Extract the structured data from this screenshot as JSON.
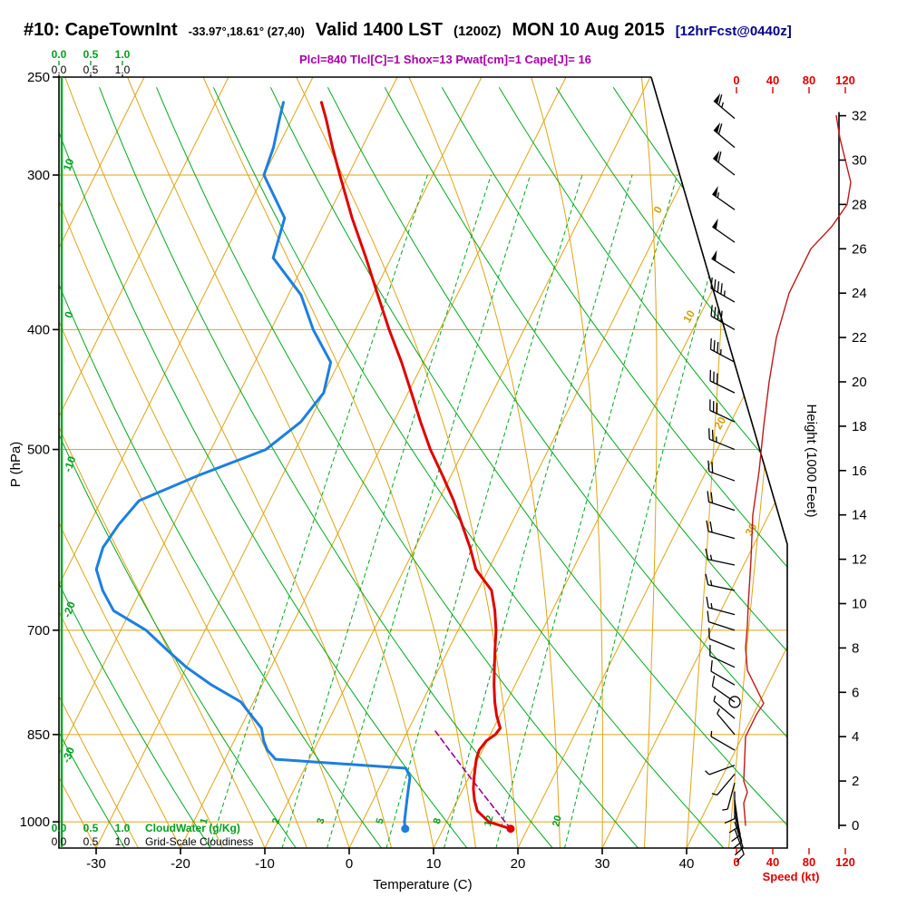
{
  "header": {
    "title_main": "#10: CapeTownInt",
    "title_coords": "-33.97°,18.61° (27,40)",
    "title_valid": "Valid 1400 LST",
    "title_z": "(1200Z)",
    "title_date": "MON 10 Aug 2015",
    "title_fcst": "[12hrFcst@0440z]",
    "params": "Plcl=840 Tlcl[C]=1 Shox=13 Pwat[cm]=1 Cape[J]= 16"
  },
  "axes": {
    "pressure": {
      "label": "P (hPa)",
      "ticks": [
        250,
        300,
        400,
        500,
        700,
        850,
        1000
      ]
    },
    "temperature": {
      "label": "Temperature (C)",
      "ticks": [
        -30,
        -20,
        -10,
        0,
        10,
        20,
        30,
        40
      ]
    },
    "height": {
      "label": "Height (1000 Feet)",
      "ticks": [
        0,
        2,
        4,
        6,
        8,
        10,
        12,
        14,
        16,
        18,
        20,
        22,
        24,
        26,
        28,
        30,
        32
      ]
    },
    "speed": {
      "label": "Speed (kt)",
      "ticks": [
        0,
        40,
        80,
        120
      ]
    }
  },
  "scales": {
    "cloudwater": {
      "ticks": [
        "0.0",
        "0.5",
        "1.0"
      ],
      "label": "CloudWater (g/Kg)"
    },
    "cloudiness": {
      "ticks": [
        "0.0",
        "0.5",
        "1.0"
      ],
      "label": "Grid-Scale Cloudiness"
    }
  },
  "background_labels": {
    "isotherms": [
      0,
      10,
      20,
      30
    ],
    "dry_adiabats": [
      10,
      0,
      -10,
      -20,
      -30
    ],
    "mixing_ratio": [
      1,
      2,
      3,
      5,
      8,
      12,
      20
    ]
  },
  "chart_data": {
    "type": "skewt",
    "title": "#10: CapeTownInt Valid 1400 LST (1200Z) MON 10 Aug 2015",
    "pressure_range_hPa": [
      250,
      1050
    ],
    "sounding": {
      "pressure_hPa": [
        1013,
        1000,
        980,
        960,
        940,
        920,
        905,
        890,
        875,
        860,
        850,
        840,
        820,
        800,
        775,
        750,
        725,
        700,
        675,
        650,
        625,
        600,
        575,
        550,
        525,
        500,
        475,
        450,
        425,
        400,
        375,
        350,
        325,
        300,
        285,
        270,
        262
      ],
      "temperature_C": [
        18,
        15,
        13,
        12,
        11.2,
        10.6,
        10.2,
        9.8,
        9.6,
        9.9,
        10.6,
        10.8,
        9.6,
        8.6,
        7.5,
        6.5,
        5.5,
        4.5,
        3.2,
        1.6,
        -1.5,
        -3.5,
        -5.8,
        -8.2,
        -11,
        -14,
        -16.8,
        -19.6,
        -22.6,
        -26,
        -29.4,
        -33,
        -37,
        -41,
        -43.5,
        -46,
        -47.5
      ],
      "dewpoint_C": [
        5.5,
        5,
        4.5,
        4,
        3.5,
        3,
        2,
        -14,
        -15.5,
        -16.5,
        -17,
        -17.5,
        -19.5,
        -21.5,
        -26,
        -30,
        -33.5,
        -37,
        -42,
        -44.5,
        -46.5,
        -47,
        -46.5,
        -45.5,
        -40,
        -33.5,
        -31,
        -30,
        -31,
        -35,
        -38.5,
        -44,
        -45,
        -50,
        -50.5,
        -51.5,
        -52
      ]
    },
    "parcel": {
      "p_start_hPa": 1013,
      "t_start_C": 18,
      "p_lcl_hPa": 840,
      "t_lcl_C": 1
    },
    "surface_dots": {
      "temperature_C": 18,
      "dewpoint_C": 5.5
    },
    "winds": [
      {
        "p": 270,
        "dir": 310,
        "spd": 65
      },
      {
        "p": 285,
        "dir": 310,
        "spd": 60
      },
      {
        "p": 300,
        "dir": 308,
        "spd": 58
      },
      {
        "p": 320,
        "dir": 305,
        "spd": 55
      },
      {
        "p": 340,
        "dir": 305,
        "spd": 50
      },
      {
        "p": 360,
        "dir": 302,
        "spd": 48
      },
      {
        "p": 380,
        "dir": 300,
        "spd": 45
      },
      {
        "p": 400,
        "dir": 300,
        "spd": 40
      },
      {
        "p": 425,
        "dir": 298,
        "spd": 35
      },
      {
        "p": 450,
        "dir": 296,
        "spd": 32
      },
      {
        "p": 475,
        "dir": 295,
        "spd": 28
      },
      {
        "p": 500,
        "dir": 292,
        "spd": 25
      },
      {
        "p": 530,
        "dir": 290,
        "spd": 22
      },
      {
        "p": 560,
        "dir": 288,
        "spd": 20
      },
      {
        "p": 590,
        "dir": 285,
        "spd": 18
      },
      {
        "p": 620,
        "dir": 282,
        "spd": 16
      },
      {
        "p": 650,
        "dir": 282,
        "spd": 15
      },
      {
        "p": 680,
        "dir": 285,
        "spd": 14
      },
      {
        "p": 700,
        "dir": 288,
        "spd": 12
      },
      {
        "p": 725,
        "dir": 292,
        "spd": 10
      },
      {
        "p": 750,
        "dir": 295,
        "spd": 10
      },
      {
        "p": 775,
        "dir": 300,
        "spd": 8
      },
      {
        "p": 800,
        "dir": 305,
        "spd": 8,
        "circle": true
      },
      {
        "p": 825,
        "dir": 310,
        "spd": 6
      },
      {
        "p": 850,
        "dir": 320,
        "spd": 5
      },
      {
        "p": 875,
        "dir": 300,
        "spd": 5
      },
      {
        "p": 900,
        "dir": 250,
        "spd": 5
      },
      {
        "p": 915,
        "dir": 220,
        "spd": 5
      },
      {
        "p": 930,
        "dir": 195,
        "spd": 6
      },
      {
        "p": 945,
        "dir": 180,
        "spd": 8
      },
      {
        "p": 960,
        "dir": 172,
        "spd": 8
      },
      {
        "p": 975,
        "dir": 168,
        "spd": 10
      },
      {
        "p": 988,
        "dir": 165,
        "spd": 10
      },
      {
        "p": 1000,
        "dir": 162,
        "spd": 12
      },
      {
        "p": 1013,
        "dir": 160,
        "spd": 12
      }
    ],
    "speed_profile": [
      {
        "kft": 0,
        "kt": 10
      },
      {
        "kft": 1,
        "kt": 8
      },
      {
        "kft": 1.5,
        "kt": 12
      },
      {
        "kft": 2,
        "kt": 8
      },
      {
        "kft": 3,
        "kt": 9
      },
      {
        "kft": 4,
        "kt": 10
      },
      {
        "kft": 5,
        "kt": 22
      },
      {
        "kft": 5.5,
        "kt": 30
      },
      {
        "kft": 6,
        "kt": 24
      },
      {
        "kft": 7,
        "kt": 12
      },
      {
        "kft": 8,
        "kt": 10
      },
      {
        "kft": 9,
        "kt": 12
      },
      {
        "kft": 10,
        "kt": 13
      },
      {
        "kft": 12,
        "kt": 16
      },
      {
        "kft": 14,
        "kt": 18
      },
      {
        "kft": 16,
        "kt": 25
      },
      {
        "kft": 18,
        "kt": 30
      },
      {
        "kft": 20,
        "kt": 36
      },
      {
        "kft": 22,
        "kt": 44
      },
      {
        "kft": 24,
        "kt": 58
      },
      {
        "kft": 26,
        "kt": 82
      },
      {
        "kft": 27,
        "kt": 105
      },
      {
        "kft": 28,
        "kt": 122
      },
      {
        "kft": 29,
        "kt": 126
      },
      {
        "kft": 30,
        "kt": 120
      },
      {
        "kft": 31,
        "kt": 114
      },
      {
        "kft": 32,
        "kt": 110
      }
    ]
  },
  "colors": {
    "background_tan": "#dfa413",
    "background_green": "#00a81e",
    "temperature_line": "#e00000",
    "dewpoint_line": "#1c7fe0",
    "parcel_line": "#990099",
    "speed_curve": "#c01818",
    "axis_red": "#e00000",
    "params_text": "#aa00aa",
    "fcst_text": "#00008b"
  }
}
